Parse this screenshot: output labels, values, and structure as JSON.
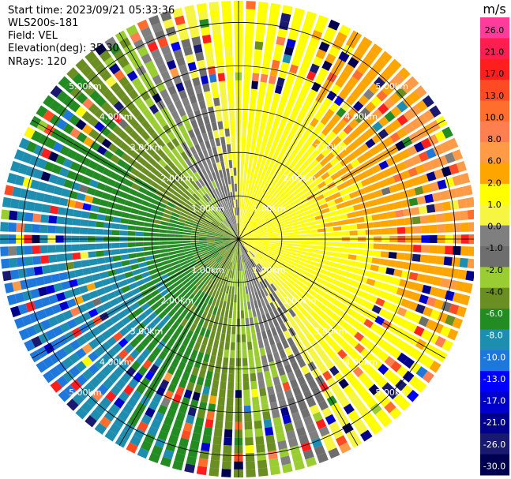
{
  "header": {
    "start_time": "Start time: 2023/09/21 05:33:36",
    "instrument": "WLS200s-181",
    "field": "Field: VEL",
    "elevation": "Elevation(deg): 35.30",
    "nrays": "NRays: 120"
  },
  "chart_data": {
    "type": "polar_ppi",
    "field": "VEL",
    "units": "m/s",
    "rays": 120,
    "gate_count": 30,
    "max_range_km": 5.5,
    "range_rings_km": [
      1.0,
      2.0,
      3.0,
      4.0,
      5.0
    ],
    "ring_labels": [
      "1.00km",
      "2.00km",
      "3.00km",
      "4.00km",
      "5.00km"
    ],
    "radial_spokes_deg": [
      0,
      30,
      60,
      90,
      120,
      150,
      180,
      210,
      240,
      270,
      300,
      330
    ],
    "colorbar": {
      "title": "m/s",
      "ticks": [
        "26.0",
        "21.0",
        "17.0",
        "13.0",
        "10.0",
        "8.0",
        "6.0",
        "2.0",
        "1.0",
        "0.0",
        "-1.0",
        "-2.0",
        "-4.0",
        "-6.0",
        "-8.0",
        "-10.0",
        "-13.0",
        "-17.0",
        "-21.0",
        "-26.0",
        "-30.0"
      ],
      "colors": [
        "#ff3c9c",
        "#ff1e50",
        "#ff1e1e",
        "#ff4b23",
        "#ff6e2d",
        "#ff7f50",
        "#ff9b46",
        "#ffa500",
        "#ffff00",
        "#f5f542",
        "#7f7f7f",
        "#6e6e6e",
        "#9acd32",
        "#6b8e23",
        "#228b22",
        "#1e8eb0",
        "#1e78dc",
        "#0000ff",
        "#0000cd",
        "#00008b",
        "#191970",
        "#000050"
      ]
    },
    "velocity_field": "positive (receding) toward east/north-east, negative (approaching) toward west; near-zero band along north-south axis"
  }
}
